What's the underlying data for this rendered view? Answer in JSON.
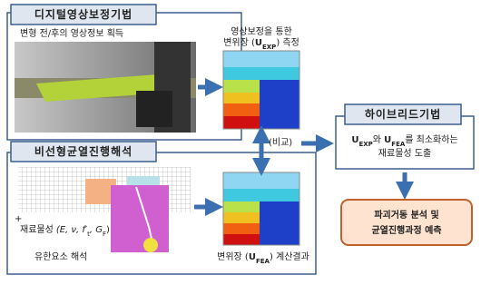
{
  "top_panel": {
    "title": "디지털영상보정기법",
    "caption": "변형 전/후의 영상정보 획득",
    "result_line1": "영상보정을 통한",
    "result_line2": {
      "pre": "변위장 (",
      "var": "U",
      "sub": "EXP",
      "post": ") 측정"
    }
  },
  "compare_label": "(비교)",
  "bottom_panel": {
    "title": "비선형균열진행해석",
    "plus": "+",
    "material": {
      "word": "재료물성",
      "p1": "(E, ν, f′",
      "s1": "t",
      "p2": ", G",
      "s2": "F",
      "p3": ")"
    },
    "caption": "유한요소 해석",
    "result": {
      "pre": "변위장 (",
      "var": "U",
      "sub": "FEA",
      "post": ") 계산결과"
    }
  },
  "hybrid": {
    "title": "하이브리드기법",
    "line1": {
      "v1": "U",
      "s1": "EXP",
      "mid": "와 ",
      "v2": "U",
      "s2": "FEA",
      "post": "를 최소화하는"
    },
    "line2": "재료물성 도출"
  },
  "outcome": {
    "line1": "파괴거동 분석 및",
    "line2": "균열진행과정 예측"
  }
}
